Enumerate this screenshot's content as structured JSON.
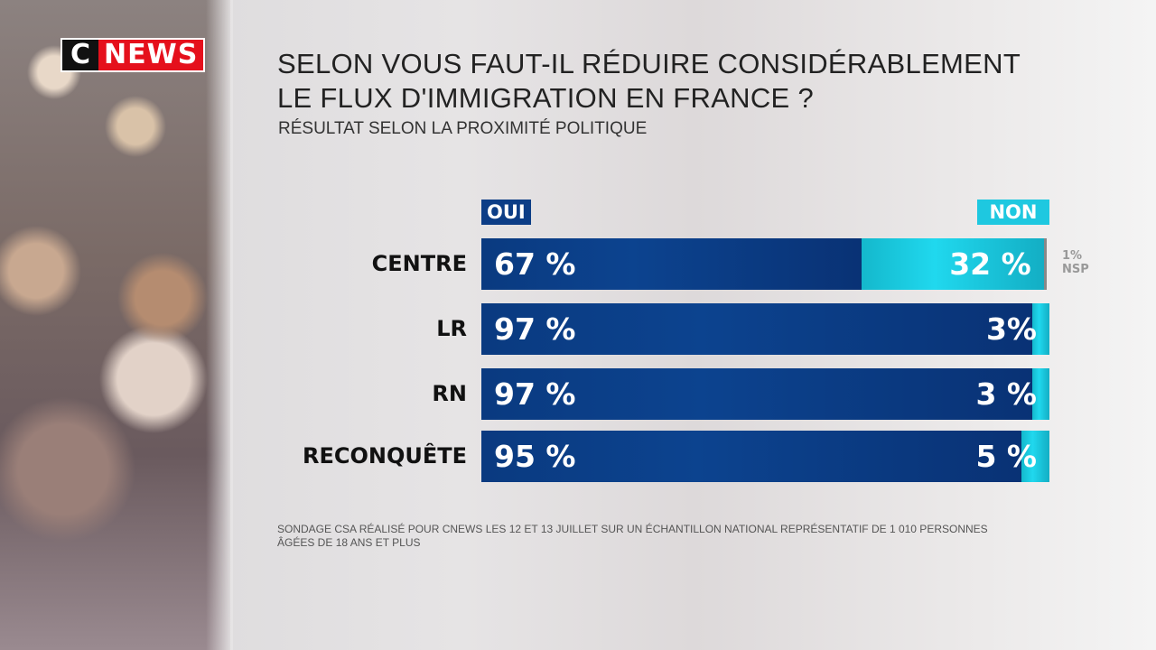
{
  "logo": {
    "c": "C",
    "news": "NEWS"
  },
  "title_line1": "SELON VOUS FAUT-IL RÉDUIRE CONSIDÉRABLEMENT",
  "title_line2": "LE FLUX D'IMMIGRATION EN FRANCE ?",
  "subtitle": "RÉSULTAT SELON LA PROXIMITÉ POLITIQUE",
  "footnote_line1": "SONDAGE CSA RÉALISÉ POUR CNEWS LES 12 ET 13 JUILLET SUR UN ÉCHANTILLON NATIONAL REPRÉSENTATIF DE 1 010 PERSONNES",
  "footnote_line2": "ÂGÉES DE 18 ANS ET PLUS",
  "colors": {
    "oui": "#0c3d86",
    "non": "#1ec8e0",
    "nsp": "#888888",
    "logo_red": "#e5101c"
  },
  "chart_data": {
    "type": "bar",
    "orientation": "horizontal",
    "stacked": true,
    "categories": [
      "CENTRE",
      "LR",
      "RN",
      "RECONQUÊTE"
    ],
    "series": [
      {
        "name": "OUI",
        "values": [
          67,
          97,
          97,
          95
        ],
        "labels": [
          "67 %",
          "97 %",
          "97 %",
          "95 %"
        ]
      },
      {
        "name": "NON",
        "values": [
          32,
          3,
          3,
          5
        ],
        "labels": [
          "32 %",
          "3%",
          "3 %",
          "5 %"
        ]
      },
      {
        "name": "NSP",
        "values": [
          1,
          0,
          0,
          0
        ],
        "labels": [
          "1%",
          null,
          null,
          null
        ]
      }
    ],
    "nsp_label": "NSP",
    "xlim": [
      0,
      100
    ],
    "legend_placement": "top"
  }
}
